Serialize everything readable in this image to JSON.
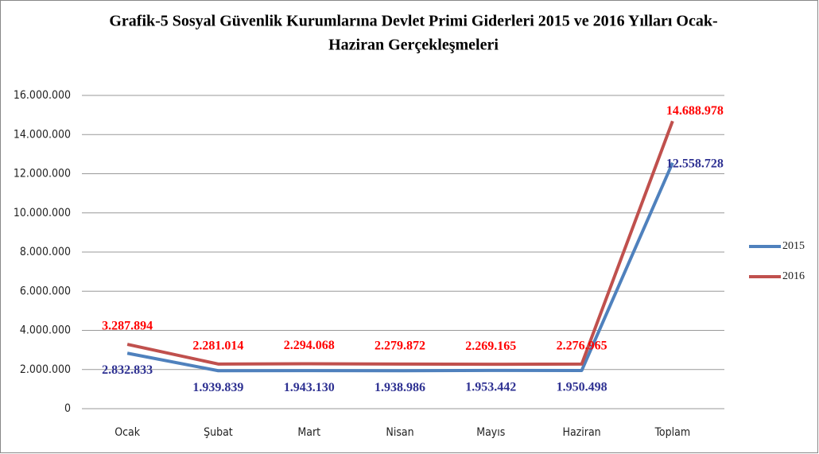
{
  "chart_data": {
    "type": "line",
    "title": [
      "Grafik-5 Sosyal Güvenlik Kurumlarına  Devlet Primi  Giderleri  2015 ve 2016 Yılları  Ocak-",
      "Haziran  Gerçekleşmeleri"
    ],
    "categories": [
      "Ocak",
      "Şubat",
      "Mart",
      "Nisan",
      "Mayıs",
      "Haziran",
      "Toplam"
    ],
    "series": [
      {
        "name": "2015",
        "color": "#4f81bd",
        "label_color": "#2e3192",
        "values": [
          2832833,
          1939839,
          1943130,
          1938986,
          1953442,
          1950498,
          12558728
        ],
        "value_labels": [
          "2.832.833",
          "1.939.839",
          "1.943.130",
          "1.938.986",
          "1.953.442",
          "1.950.498",
          "12.558.728"
        ]
      },
      {
        "name": "2016",
        "color": "#c0504d",
        "label_color": "#ff0000",
        "values": [
          3287894,
          2281014,
          2294068,
          2279872,
          2269165,
          2276965,
          14688978
        ],
        "value_labels": [
          "3.287.894",
          "2.281.014",
          "2.294.068",
          "2.279.872",
          "2.269.165",
          "2.276.965",
          "14.688.978"
        ]
      }
    ],
    "ylim": [
      0,
      16000000
    ],
    "yticks": [
      0,
      {
        "value": 2000000,
        "label": "2.000.000"
      },
      {
        "value": 4000000,
        "label": "4.000.000"
      },
      {
        "value": 6000000,
        "label": "6.000.000"
      },
      {
        "value": 8000000,
        "label": "8.000.000"
      },
      {
        "value": 10000000,
        "label": "10.000.000"
      },
      {
        "value": 12000000,
        "label": "12.000.000"
      },
      {
        "value": 14000000,
        "label": "14.000.000"
      },
      {
        "value": 16000000,
        "label": "16.000.000"
      }
    ],
    "grid": true,
    "legend": "right"
  }
}
